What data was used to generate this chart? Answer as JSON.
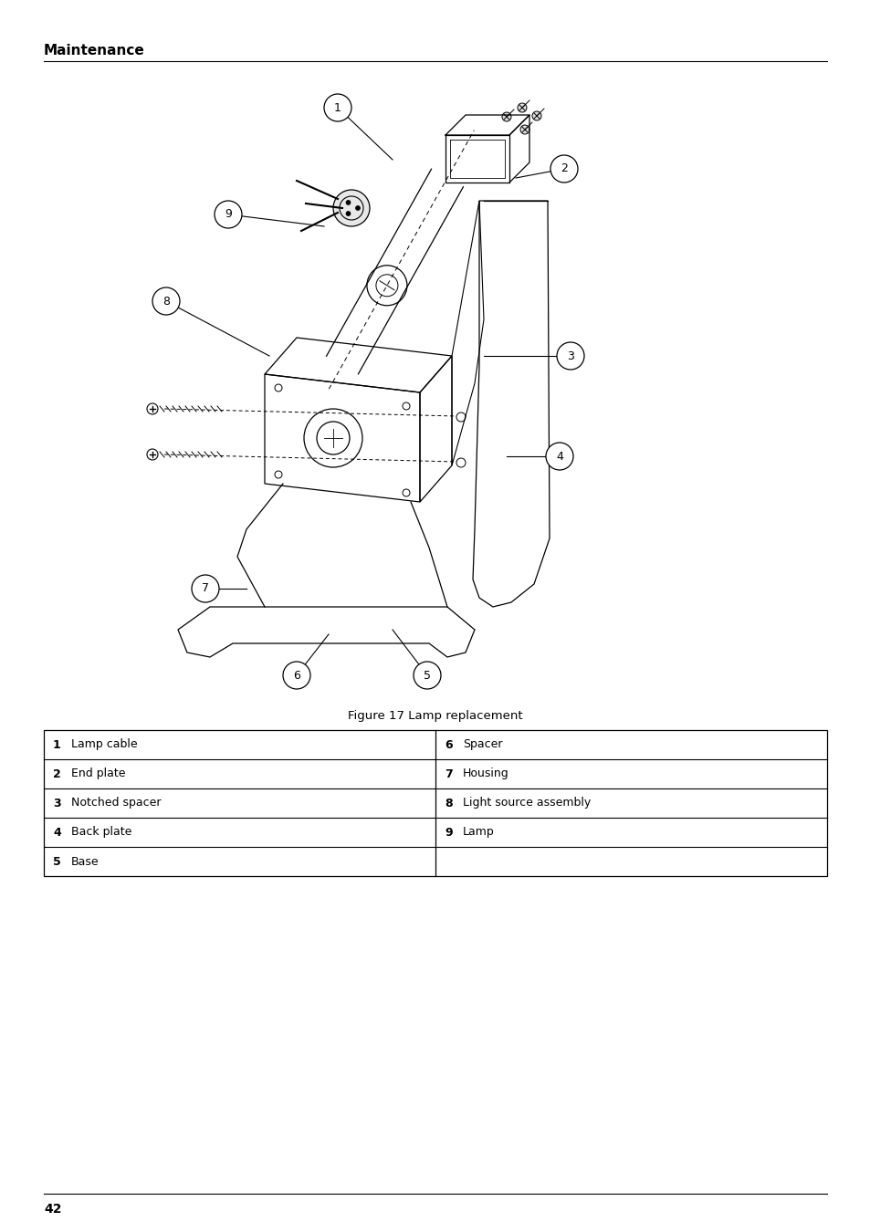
{
  "page_title": "Maintenance",
  "figure_caption": "Figure 17 Lamp replacement",
  "page_number": "42",
  "background_color": "#ffffff",
  "table_rows": [
    {
      "left_num": "1",
      "left_label": "Lamp cable",
      "right_num": "6",
      "right_label": "Spacer"
    },
    {
      "left_num": "2",
      "left_label": "End plate",
      "right_num": "7",
      "right_label": "Housing"
    },
    {
      "left_num": "3",
      "left_label": "Notched spacer",
      "right_num": "8",
      "right_label": "Light source assembly"
    },
    {
      "left_num": "4",
      "left_label": "Back plate",
      "right_num": "9",
      "right_label": "Lamp"
    },
    {
      "left_num": "5",
      "left_label": "Base",
      "right_num": "",
      "right_label": ""
    }
  ],
  "title_fontsize": 11,
  "caption_fontsize": 9.5,
  "table_fontsize": 9
}
